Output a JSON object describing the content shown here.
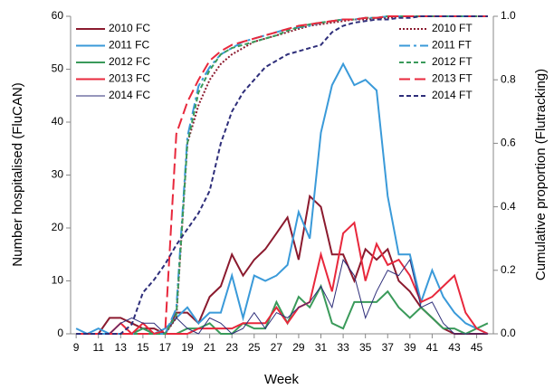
{
  "chart_data": {
    "type": "line",
    "xlabel": "Week",
    "ylabel": "Number hospitalised (FluCAN)",
    "y2label": "Cumulative proportion (Flutracking)",
    "x": [
      9,
      10,
      11,
      12,
      13,
      14,
      15,
      16,
      17,
      18,
      19,
      20,
      21,
      22,
      23,
      24,
      25,
      26,
      27,
      28,
      29,
      30,
      31,
      32,
      33,
      34,
      35,
      36,
      37,
      38,
      39,
      40,
      41,
      42,
      43,
      44,
      45,
      46
    ],
    "xlim": [
      8.5,
      46.5
    ],
    "xticks": [
      9,
      11,
      13,
      15,
      17,
      19,
      21,
      23,
      25,
      27,
      29,
      31,
      33,
      35,
      37,
      39,
      41,
      43,
      45
    ],
    "ylim": [
      0,
      60
    ],
    "yticks": [
      0,
      10,
      20,
      30,
      40,
      50,
      60
    ],
    "y2lim": [
      0,
      1
    ],
    "y2ticks": [
      {
        "value": 0,
        "label": "0.0"
      },
      {
        "value": 0.2,
        "label": "0.2"
      },
      {
        "value": 0.4,
        "label": "0.4"
      },
      {
        "value": 0.6,
        "label": "0.6"
      },
      {
        "value": 0.8,
        "label": "0.8"
      },
      {
        "value": 1,
        "label": "1.0"
      }
    ],
    "series": [
      {
        "name": "2010 FC",
        "color": "#8b1a2e",
        "dash": "solid",
        "width": 2,
        "values": [
          0,
          0,
          0,
          3,
          3,
          2,
          1,
          1,
          0,
          4,
          4,
          2,
          7,
          9,
          15,
          11,
          14,
          16,
          19,
          22,
          14,
          26,
          24,
          15,
          15,
          10,
          16,
          14,
          16,
          10,
          8,
          5,
          3,
          1,
          0,
          0,
          0,
          0
        ]
      },
      {
        "name": "2011 FC",
        "color": "#3a9ad9",
        "dash": "solid",
        "width": 2,
        "values": [
          1,
          0,
          1,
          0,
          0,
          0,
          1,
          0,
          1,
          3,
          5,
          2,
          4,
          4,
          11,
          3,
          11,
          10,
          11,
          13,
          23,
          18,
          38,
          47,
          51,
          47,
          48,
          46,
          26,
          15,
          15,
          6,
          12,
          7,
          4,
          2,
          1,
          0
        ]
      },
      {
        "name": "2012 FC",
        "color": "#3a9a5a",
        "dash": "solid",
        "width": 2,
        "values": [
          0,
          0,
          0,
          0,
          0,
          0,
          1,
          0,
          0,
          0,
          1,
          1,
          2,
          0,
          0,
          2,
          1,
          1,
          6,
          2,
          7,
          5,
          9,
          2,
          1,
          6,
          6,
          6,
          8,
          5,
          3,
          5,
          3,
          1,
          1,
          0,
          1,
          2
        ]
      },
      {
        "name": "2013 FC",
        "color": "#e8283c",
        "dash": "solid",
        "width": 2,
        "values": [
          0,
          0,
          0,
          0,
          2,
          0,
          2,
          0,
          0,
          0,
          0,
          1,
          1,
          1,
          1,
          2,
          2,
          2,
          5,
          2,
          5,
          6,
          15,
          8,
          19,
          21,
          10,
          17,
          13,
          14,
          11,
          6,
          7,
          9,
          11,
          4,
          1,
          0
        ]
      },
      {
        "name": "2014 FC",
        "color": "#2e2e7a",
        "dash": "solid",
        "width": 1,
        "values": [
          0,
          0,
          0,
          0,
          2,
          3,
          2,
          2,
          0,
          3,
          1,
          0,
          3,
          2,
          0,
          1,
          4,
          1,
          4,
          3,
          5,
          6,
          9,
          5,
          14,
          11,
          3,
          8,
          12,
          11,
          14,
          5,
          6,
          2,
          0,
          0,
          0,
          0
        ]
      },
      {
        "name": "2010 FT",
        "color": "#8b1a2e",
        "dash": "dotted",
        "width": 2,
        "axis": "y2",
        "values": [
          0,
          0,
          0,
          0,
          0,
          0,
          0,
          0,
          0,
          0.05,
          0.6,
          0.72,
          0.8,
          0.85,
          0.88,
          0.9,
          0.92,
          0.93,
          0.94,
          0.95,
          0.96,
          0.97,
          0.975,
          0.98,
          0.985,
          0.99,
          0.99,
          0.995,
          0.995,
          1,
          1,
          1,
          1,
          1,
          1,
          1,
          1,
          1
        ]
      },
      {
        "name": "2011 FT",
        "color": "#3a9ad9",
        "dash": "dashdot",
        "width": 2,
        "axis": "y2",
        "values": [
          0,
          0,
          0,
          0,
          0,
          0,
          0,
          0,
          0,
          0.08,
          0.62,
          0.78,
          0.84,
          0.88,
          0.9,
          0.92,
          0.93,
          0.94,
          0.95,
          0.96,
          0.965,
          0.97,
          0.98,
          0.985,
          0.99,
          0.99,
          0.995,
          0.995,
          1,
          1,
          1,
          1,
          1,
          1,
          1,
          1,
          1,
          1
        ]
      },
      {
        "name": "2012 FT",
        "color": "#3a9a5a",
        "dash": "dashed",
        "width": 2,
        "axis": "y2",
        "values": [
          0,
          0,
          0,
          0,
          0,
          0,
          0,
          0,
          0,
          0.06,
          0.6,
          0.76,
          0.83,
          0.88,
          0.9,
          0.91,
          0.92,
          0.93,
          0.94,
          0.955,
          0.965,
          0.975,
          0.98,
          0.985,
          0.99,
          0.99,
          0.995,
          0.995,
          1,
          1,
          1,
          1,
          1,
          1,
          1,
          1,
          1,
          1
        ]
      },
      {
        "name": "2013 FT",
        "color": "#e8283c",
        "dash": "longdash",
        "width": 2,
        "axis": "y2",
        "values": [
          0,
          0,
          0,
          0,
          0,
          0,
          0,
          0,
          0.01,
          0.63,
          0.73,
          0.8,
          0.86,
          0.89,
          0.91,
          0.92,
          0.93,
          0.94,
          0.95,
          0.96,
          0.97,
          0.975,
          0.98,
          0.985,
          0.99,
          0.99,
          0.995,
          0.995,
          1,
          1,
          1,
          1,
          1,
          1,
          1,
          1,
          1,
          1
        ]
      },
      {
        "name": "2014 FT",
        "color": "#2e2e7a",
        "dash": "dashed",
        "width": 2,
        "axis": "y2",
        "values": [
          0,
          0,
          0,
          0,
          0,
          0.03,
          0.13,
          0.17,
          0.22,
          0.28,
          0.33,
          0.38,
          0.45,
          0.6,
          0.7,
          0.76,
          0.8,
          0.84,
          0.86,
          0.88,
          0.89,
          0.9,
          0.91,
          0.95,
          0.97,
          0.98,
          0.985,
          0.99,
          0.99,
          0.995,
          0.995,
          1,
          1,
          1,
          1,
          1,
          1,
          1
        ]
      }
    ]
  }
}
